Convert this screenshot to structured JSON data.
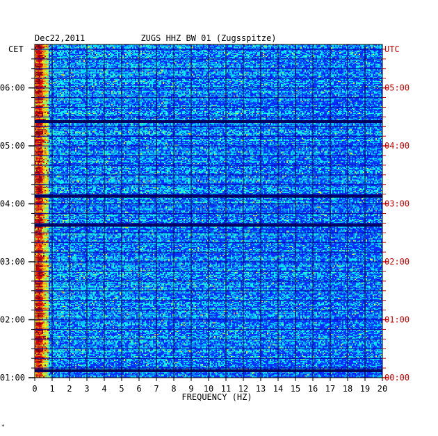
{
  "header": {
    "date": "Dec22,2011",
    "station": "ZUGS HHZ BW 01 (Zugsspitze)"
  },
  "footer": {
    "mark": "*"
  },
  "colors": {
    "local_axis": "#000000",
    "utc_axis": "#cc0000",
    "background_low": "#0000a0",
    "background_mid": "#0a2bff",
    "energy_high": "#ff2a00"
  },
  "chart_data": {
    "type": "heatmap",
    "title": "ZUGS HHZ BW 01 (Zugsspitze)",
    "date": "Dec22,2011",
    "xlabel": "FREQUENCY (HZ)",
    "xlim": [
      0,
      20
    ],
    "x_ticks": [
      0,
      1,
      2,
      3,
      4,
      5,
      6,
      7,
      8,
      9,
      10,
      11,
      12,
      13,
      14,
      15,
      16,
      17,
      18,
      19,
      20
    ],
    "left_axis": {
      "label": "CET",
      "ticks": [
        {
          "label": "06:00",
          "hours": 6
        },
        {
          "label": "05:00",
          "hours": 5
        },
        {
          "label": "04:00",
          "hours": 4
        },
        {
          "label": "03:00",
          "hours": 3
        },
        {
          "label": "02:00",
          "hours": 2
        },
        {
          "label": "01:00",
          "hours": 1
        }
      ]
    },
    "right_axis": {
      "label": "UTC",
      "ticks": [
        {
          "label": "05:00",
          "hours": 5
        },
        {
          "label": "04:00",
          "hours": 4
        },
        {
          "label": "03:00",
          "hours": 3
        },
        {
          "label": "02:00",
          "hours": 2
        },
        {
          "label": "01:00",
          "hours": 1
        },
        {
          "label": "00:00",
          "hours": 0
        }
      ]
    },
    "ylim_cet_hours": [
      1,
      6.75
    ],
    "row_interval_minutes": 10,
    "gaps_cet_hours": [
      5.42,
      4.13,
      3.63,
      1.12
    ],
    "energy_band_hz": [
      0,
      0.8
    ],
    "grid": true
  }
}
